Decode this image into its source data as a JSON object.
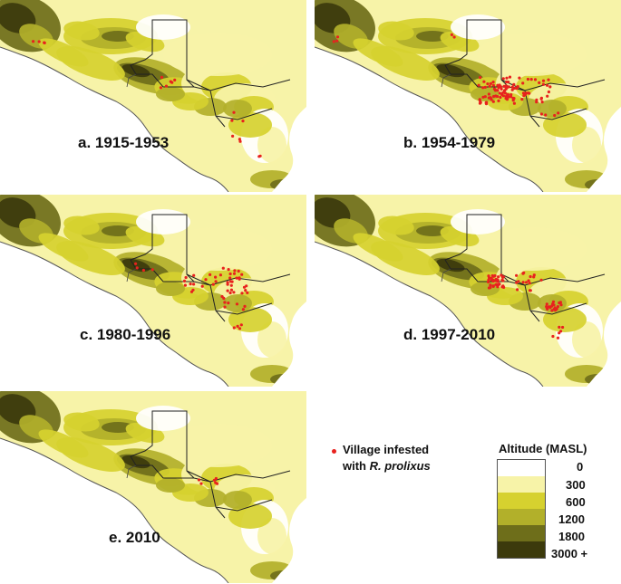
{
  "panels": [
    {
      "label": "a. 1915-1953",
      "village_count_class": "sparse"
    },
    {
      "label": "b. 1954-1979",
      "village_count_class": "dense"
    },
    {
      "label": "c. 1980-1996",
      "village_count_class": "moderate"
    },
    {
      "label": "d. 1997-2010",
      "village_count_class": "clustered"
    },
    {
      "label": "e. 2010",
      "village_count_class": "few"
    }
  ],
  "legend": {
    "village_line1": "Village infested",
    "village_line2_prefix": "with ",
    "village_line2_species": "R. prolixus",
    "village_color": "#e8221e",
    "altitude_title": "Altitude (MASL)",
    "altitude_classes": [
      {
        "label": "0",
        "color": "#ffffff"
      },
      {
        "label": "300",
        "color": "#f7f3a8"
      },
      {
        "label": "600",
        "color": "#d6d12f"
      },
      {
        "label": "1200",
        "color": "#b2b02a"
      },
      {
        "label": "1800",
        "color": "#6e6e1a"
      },
      {
        "label": "3000 +",
        "color": "#3c3a0c"
      }
    ]
  }
}
